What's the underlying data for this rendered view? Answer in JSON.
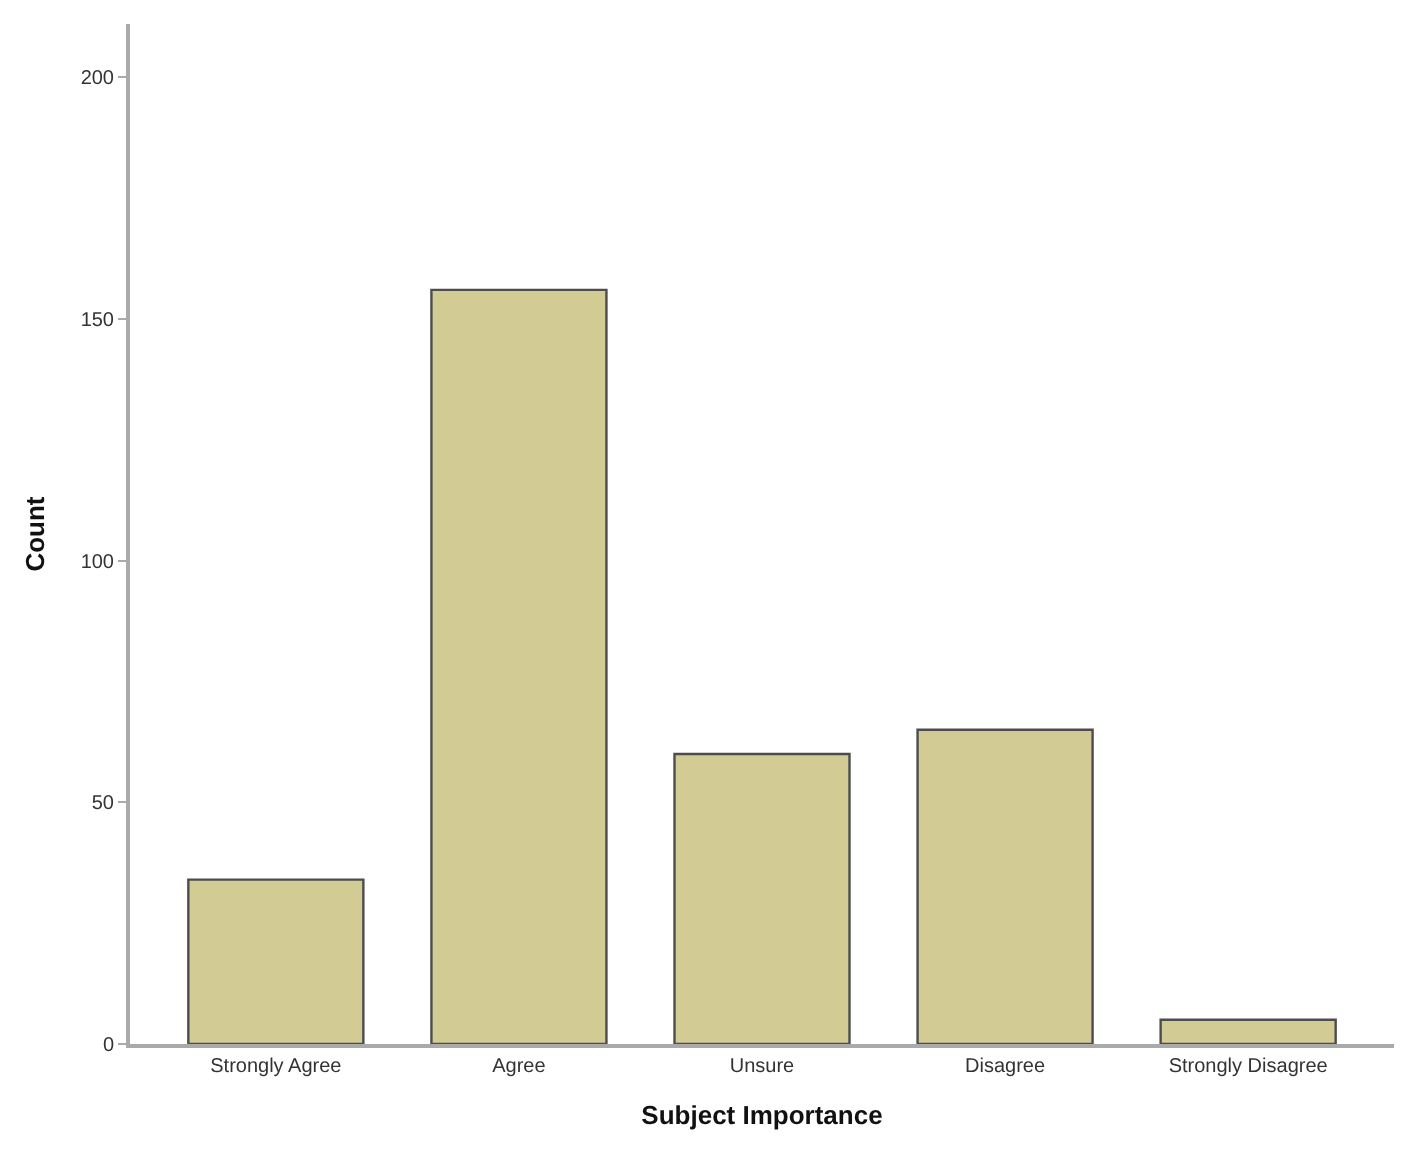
{
  "chart_data": {
    "type": "bar",
    "xlabel": "Subject Importance",
    "ylabel": "Count",
    "categories": [
      "Strongly Agree",
      "Agree",
      "Unsure",
      "Disagree",
      "Strongly Disagree"
    ],
    "values": [
      34,
      156,
      60,
      65,
      5
    ],
    "color": "#d3cb94",
    "ylim": [
      0,
      211
    ],
    "yticks": [
      0,
      50,
      100,
      150,
      200
    ]
  }
}
